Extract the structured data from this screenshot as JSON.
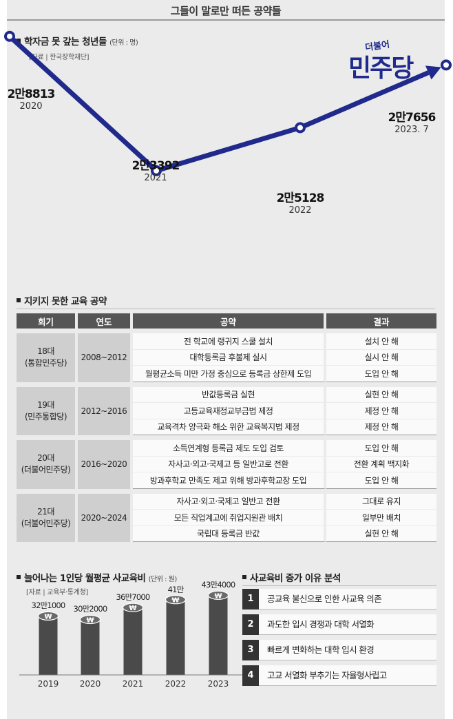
{
  "header": {
    "title": "그들이 말로만 떠든 공약들"
  },
  "logo": {
    "small": "더불어",
    "big": "민주당"
  },
  "line_section": {
    "title": "학자금 못 갚는 청년들",
    "unit": "(단위 : 명)",
    "source": "[자료 | 한국장학재단]",
    "points": [
      {
        "value_label": "2만8813",
        "year_label": "2020"
      },
      {
        "value_label": "2만3392",
        "year_label": "2021"
      },
      {
        "value_label": "2만5128",
        "year_label": "2022"
      },
      {
        "value_label": "2만7656",
        "year_label": "2023. 7"
      }
    ]
  },
  "table_section": {
    "title": "지키지 못한 교육 공약",
    "headers": [
      "회기",
      "연도",
      "공약",
      "결과"
    ],
    "groups": [
      {
        "term": "18대",
        "party": "(통합민주당)",
        "years": "2008~2012",
        "rows": [
          {
            "pledge": "전 학교에 랭귀지 스쿨 설치",
            "result": "설치 안 해"
          },
          {
            "pledge": "대학등록금 후불제 실시",
            "result": "실시 안 해"
          },
          {
            "pledge": "월평균소득 미만 가정 중심으로 등록금 상한제 도입",
            "result": "도입 안 해"
          }
        ]
      },
      {
        "term": "19대",
        "party": "(민주통합당)",
        "years": "2012~2016",
        "rows": [
          {
            "pledge": "반값등록금 실현",
            "result": "실현 안 해"
          },
          {
            "pledge": "고등교육재정교부금법 제정",
            "result": "제정 안 해"
          },
          {
            "pledge": "교육격차 양극화 해소 위한 교육복지법 제정",
            "result": "제정 안 해"
          }
        ]
      },
      {
        "term": "20대",
        "party": "(더불어민주당)",
        "years": "2016~2020",
        "rows": [
          {
            "pledge": "소득연계형 등록금 제도 도입 검토",
            "result": "도입 안 해"
          },
          {
            "pledge": "자사고·외고·국제고 등 일반고로 전환",
            "result": "전환 계획 백지화"
          },
          {
            "pledge": "방과후학교 만족도 제고 위해 방과후학교장 도입",
            "result": "도입 안 해"
          }
        ]
      },
      {
        "term": "21대",
        "party": "(더불어민주당)",
        "years": "2020~2024",
        "rows": [
          {
            "pledge": "자사고·외고·국제고 일반고 전환",
            "result": "그대로 유지"
          },
          {
            "pledge": "모든 직업계고에 취업지원관 배치",
            "result": "일부만 배치"
          },
          {
            "pledge": "국립대 등록금 반값",
            "result": "실현 안 해"
          }
        ]
      }
    ]
  },
  "bar_section": {
    "title": "늘어나는 1인당 월평균 사교육비",
    "unit": "(단위 : 원)",
    "source": "[자료 | 교육부·통계청]"
  },
  "reasons_section": {
    "title": "사교육비 증가 이유 분석",
    "items": [
      {
        "num": "1",
        "text": "공교육 불신으로 인한 사교육 의존"
      },
      {
        "num": "2",
        "text": "과도한 입시 경쟁과 대학 서열화"
      },
      {
        "num": "3",
        "text": "빠르게 변화하는 대학 입시 환경"
      },
      {
        "num": "4",
        "text": "고교 서열화 부추기는 자율형사립고"
      }
    ]
  },
  "colors": {
    "line": "#1f2a8c",
    "bar": "#4a4a4a",
    "table_header": "#555555"
  },
  "chart_data": [
    {
      "type": "line",
      "title": "학자금 못 갚는 청년들",
      "ylabel": "(단위 : 명)",
      "x": [
        "2020",
        "2021",
        "2022",
        "2023. 7"
      ],
      "series": [
        {
          "values": [
            28813,
            23392,
            25128,
            27656
          ]
        }
      ],
      "ylim": [
        20000,
        30000
      ],
      "grid": false
    },
    {
      "type": "bar",
      "title": "늘어나는 1인당 월평균 사교육비",
      "ylabel": "(단위 : 원)",
      "categories": [
        "2019",
        "2020",
        "2021",
        "2022",
        "2023"
      ],
      "values": [
        321000,
        302000,
        367000,
        410000,
        434000
      ],
      "value_labels": [
        "32만1000",
        "30만2000",
        "36만7000",
        "41만",
        "43만4000"
      ],
      "ylim": [
        0,
        450000
      ],
      "grid": false
    }
  ]
}
